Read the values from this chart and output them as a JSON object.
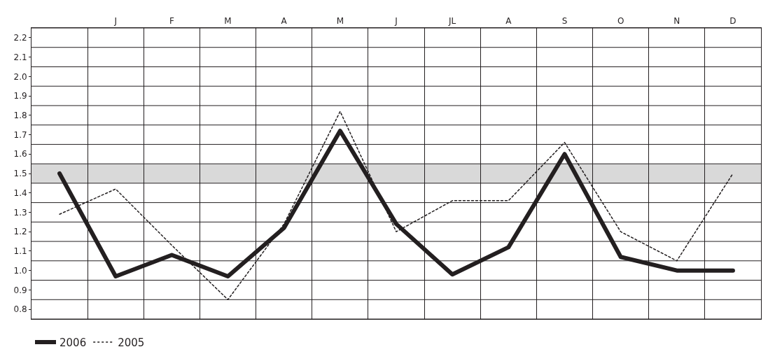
{
  "chart_data": {
    "type": "line",
    "categories": [
      null,
      "J",
      "F",
      "M",
      "A",
      "M",
      "J",
      "JL",
      "A",
      "S",
      "O",
      "N",
      "D"
    ],
    "series": [
      {
        "name": "2006",
        "color": "#231f20",
        "line_style": "solid",
        "values": [
          1.5,
          0.97,
          1.08,
          0.97,
          1.22,
          1.72,
          1.24,
          0.98,
          1.12,
          1.6,
          1.07,
          1.0,
          1.0
        ]
      },
      {
        "name": "2005",
        "color": "#231f20",
        "line_style": "dotted",
        "values": [
          1.29,
          1.42,
          1.13,
          0.85,
          1.24,
          1.82,
          1.2,
          1.36,
          1.36,
          1.66,
          1.2,
          1.05,
          1.5
        ]
      }
    ],
    "ylim": [
      0.75,
      2.25
    ],
    "yticks": [
      0.8,
      0.9,
      {
        "value": 1.0,
        "label": "1.0"
      },
      1.1,
      1.2,
      1.3,
      1.4,
      1.5,
      1.6,
      1.7,
      1.8,
      1.9,
      {
        "value": 2.0,
        "label": "2.0"
      },
      2.1,
      2.2
    ],
    "bands": [
      {
        "axis": "y",
        "from": 1.45,
        "to": 1.55,
        "color": "#d9d9d9"
      }
    ],
    "grid": true,
    "legend": "bottom left",
    "marker": "none"
  }
}
